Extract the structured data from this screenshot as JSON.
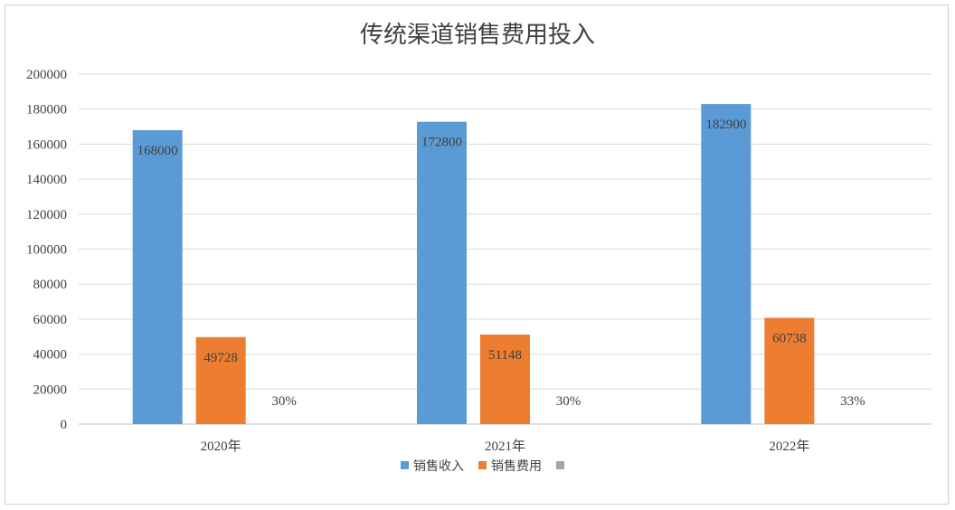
{
  "chart_data": {
    "type": "bar",
    "title": "传统渠道销售费用投入",
    "xlabel": "",
    "ylabel": "",
    "categories": [
      "2020年",
      "2021年",
      "2022年"
    ],
    "ylim": [
      0,
      200000
    ],
    "yticks": [
      0,
      20000,
      40000,
      60000,
      80000,
      100000,
      120000,
      140000,
      160000,
      180000,
      200000
    ],
    "grid": true,
    "legend_position": "bottom",
    "series": [
      {
        "name": "销售收入",
        "color": "#5b9bd5",
        "values": [
          168000,
          172800,
          182900
        ],
        "labels": [
          "168000",
          "172800",
          "182900"
        ]
      },
      {
        "name": "销售费用",
        "color": "#ed7d31",
        "values": [
          49728,
          51148,
          60738
        ],
        "labels": [
          "49728",
          "51148",
          "60738"
        ]
      },
      {
        "name": "",
        "color": "#a5a5a5",
        "values": [
          0.3,
          0.3,
          0.33
        ],
        "labels": [
          "30%",
          "30%",
          "33%"
        ]
      }
    ]
  }
}
